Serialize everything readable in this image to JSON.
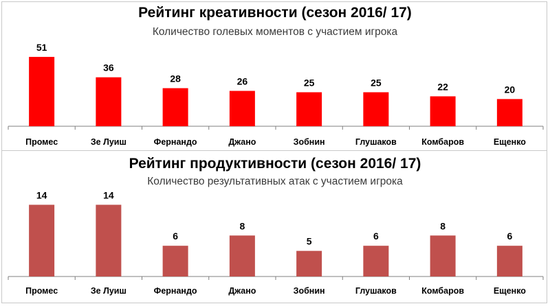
{
  "chart_data": [
    {
      "type": "bar",
      "title": "Рейтинг креативности (сезон 2016/ 17)",
      "subtitle": "Количество голевых моментов с участием игрока",
      "categories": [
        "Промес",
        "Зе Луиш",
        "Фернандо",
        "Джано",
        "Зобнин",
        "Глушаков",
        "Комбаров",
        "Ещенко"
      ],
      "values": [
        51,
        36,
        28,
        26,
        25,
        25,
        22,
        20
      ],
      "ylim": [
        0,
        55
      ],
      "bar_color": "#ff0000",
      "xlabel": "",
      "ylabel": "",
      "grid": false,
      "legend": "none"
    },
    {
      "type": "bar",
      "title": "Рейтинг продуктивности (сезон 2016/ 17)",
      "subtitle": "Количество результативных атак с участием игрока",
      "categories": [
        "Промес",
        "Зе Луиш",
        "Фернандо",
        "Джано",
        "Зобнин",
        "Глушаков",
        "Комбаров",
        "Ещенко"
      ],
      "values": [
        14,
        14,
        6,
        8,
        5,
        6,
        8,
        6
      ],
      "ylim": [
        0,
        15
      ],
      "bar_color": "#c0504d",
      "xlabel": "",
      "ylabel": "",
      "grid": false,
      "legend": "none"
    }
  ]
}
